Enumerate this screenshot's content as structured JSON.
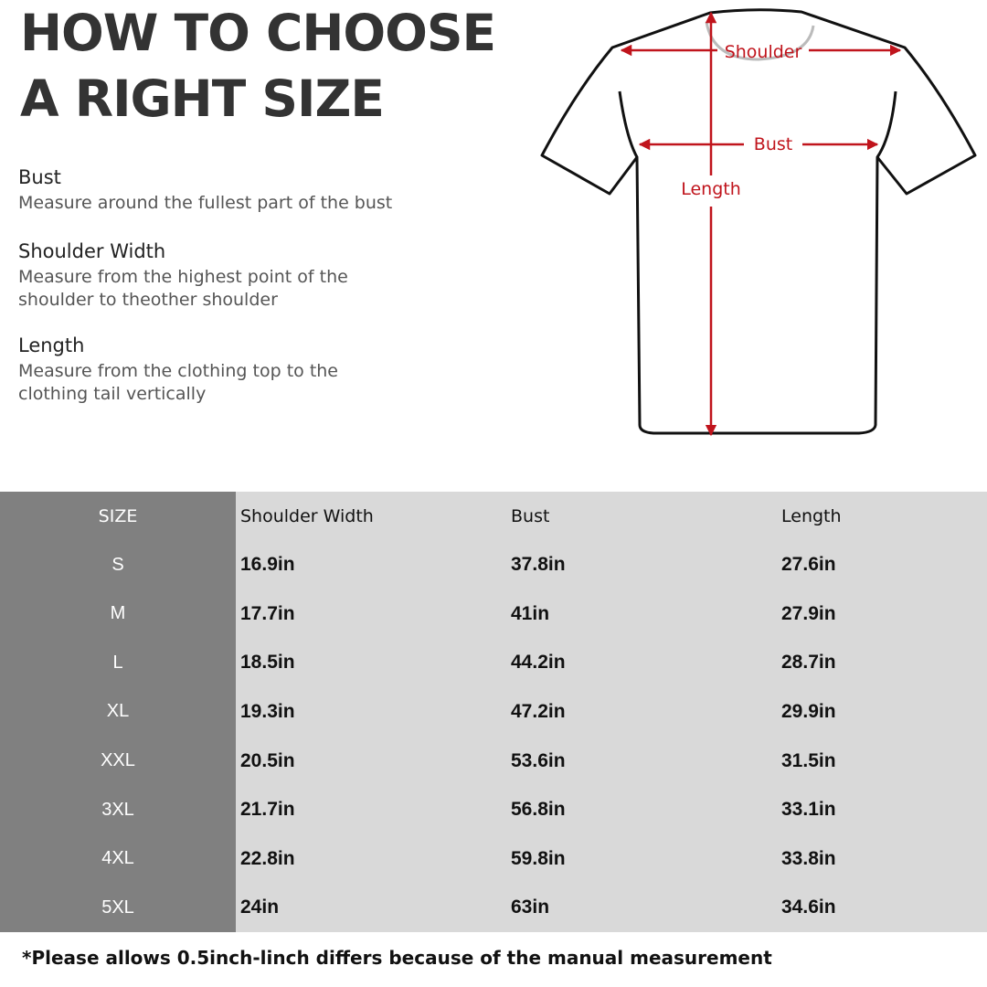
{
  "heading": {
    "line1": "HOW TO CHOOSE",
    "line2": "A RIGHT SIZE"
  },
  "instructions": [
    {
      "title": "Bust",
      "text": "Measure around the fullest part of the bust"
    },
    {
      "title": "Shoulder Width",
      "text1": "Measure from the highest point of the",
      "text2": "shoulder to theother shoulder"
    },
    {
      "title": "Length",
      "text1": "Measure from the clothing top to the",
      "text2": "clothing tail vertically"
    }
  ],
  "diagram": {
    "shoulder": "Shoulder",
    "bust": "Bust",
    "length": "Length",
    "arrow_color": "#c0141c"
  },
  "table": {
    "headers": [
      "SIZE",
      "Shoulder Width",
      "Bust",
      "Length"
    ],
    "rows": [
      [
        "S",
        "16.9in",
        "37.8in",
        "27.6in"
      ],
      [
        "M",
        "17.7in",
        "41in",
        "27.9in"
      ],
      [
        "L",
        "18.5in",
        "44.2in",
        "28.7in"
      ],
      [
        "XL",
        "19.3in",
        "47.2in",
        "29.9in"
      ],
      [
        "XXL",
        "20.5in",
        "53.6in",
        "31.5in"
      ],
      [
        "3XL",
        "21.7in",
        "56.8in",
        "33.1in"
      ],
      [
        "4XL",
        "22.8in",
        "59.8in",
        "33.8in"
      ],
      [
        "5XL",
        "24in",
        "63in",
        "34.6in"
      ]
    ]
  },
  "note": "*Please allows 0.5inch-linch differs because of the manual measurement"
}
